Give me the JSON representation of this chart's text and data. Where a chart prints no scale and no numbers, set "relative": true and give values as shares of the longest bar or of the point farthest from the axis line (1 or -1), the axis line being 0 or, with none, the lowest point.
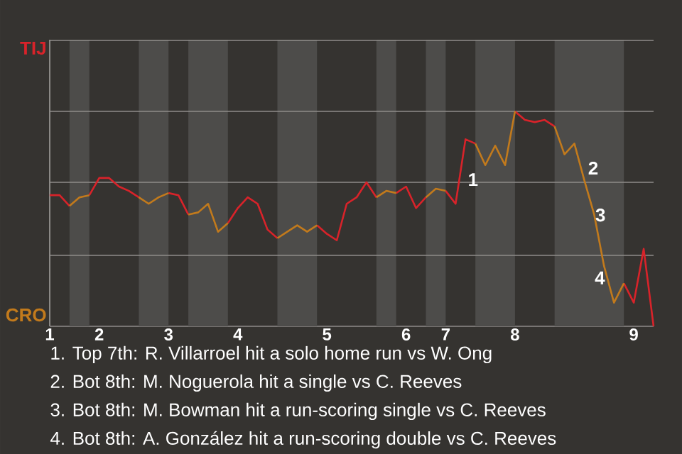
{
  "chart_data": {
    "type": "line",
    "relative": true,
    "categories": [
      "1",
      null,
      null,
      null,
      null,
      "2",
      null,
      null,
      null,
      null,
      null,
      null,
      "3",
      null,
      null,
      null,
      null,
      null,
      null,
      "4",
      null,
      null,
      null,
      null,
      null,
      null,
      null,
      null,
      "5",
      null,
      null,
      null,
      null,
      null,
      null,
      null,
      "6",
      null,
      null,
      null,
      "7",
      null,
      null,
      null,
      null,
      null,
      null,
      "8",
      null,
      null,
      null,
      null,
      null,
      null,
      null,
      null,
      null,
      null,
      null,
      "9",
      null,
      null
    ],
    "ref_lines": [
      {
        "axis": "y",
        "value": 0.33,
        "color": "#8f8d8a"
      },
      {
        "axis": "y",
        "value": 0.67,
        "color": "#8f8d8a"
      },
      {
        "axis": "y",
        "value": 1,
        "color": "#8f8d8a"
      },
      {
        "axis": "y",
        "value": 1.33,
        "color": "#8f8d8a"
      }
    ],
    "line_style": "solid",
    "marker": "none",
    "series": [
      {
        "color": "#d8232a",
        "values": [
          0.61,
          0.61,
          0.56,
          null,
          0.61,
          0.69,
          0.69,
          0.65,
          0.63,
          0.6,
          null,
          null,
          0.62,
          0.61,
          0.52,
          null,
          null,
          null,
          0.48,
          0.55,
          0.6,
          0.57,
          0.45,
          0.41,
          null,
          null,
          null,
          0.47,
          0.43,
          0.4,
          0.57,
          0.6,
          0.67,
          0.6,
          null,
          0.62,
          0.65,
          0.55,
          0.6,
          null,
          0.63,
          0.57,
          0.87,
          0.85,
          null,
          null,
          null,
          1,
          0.96,
          0.95,
          0.96,
          0.93,
          null,
          null,
          null,
          null,
          null,
          null,
          0.2,
          0.11,
          0.36,
          0
        ]
      },
      {
        "color": "#c27a1c",
        "values": [
          null,
          null,
          0.56,
          0.6,
          0.61,
          null,
          null,
          null,
          null,
          0.6,
          0.57,
          0.6,
          0.62,
          null,
          0.52,
          0.53,
          0.57,
          0.44,
          0.48,
          null,
          null,
          null,
          null,
          0.41,
          0.44,
          0.47,
          0.44,
          0.47,
          null,
          null,
          null,
          null,
          null,
          0.6,
          0.63,
          0.62,
          null,
          null,
          0.6,
          0.64,
          0.63,
          null,
          null,
          0.85,
          0.75,
          0.84,
          0.75,
          1,
          null,
          null,
          null,
          0.93,
          0.8,
          0.85,
          0.68,
          0.52,
          0.28,
          0.11,
          0.2,
          null,
          null,
          null
        ]
      }
    ],
    "annotations": [
      "TIJ",
      "CRO",
      "1",
      "2",
      "3",
      "4",
      "1. Top 7th: R. Villarroel hit a solo home run vs W. Ong",
      "2. Bot 8th: M. Noguerola hit a single vs C. Reeves",
      "3. Bot 8th: M. Bowman hit a run-scoring single vs C. Reeves",
      "4. Bot 8th: A. González hit a run-scoring double vs C. Reeves"
    ]
  }
}
